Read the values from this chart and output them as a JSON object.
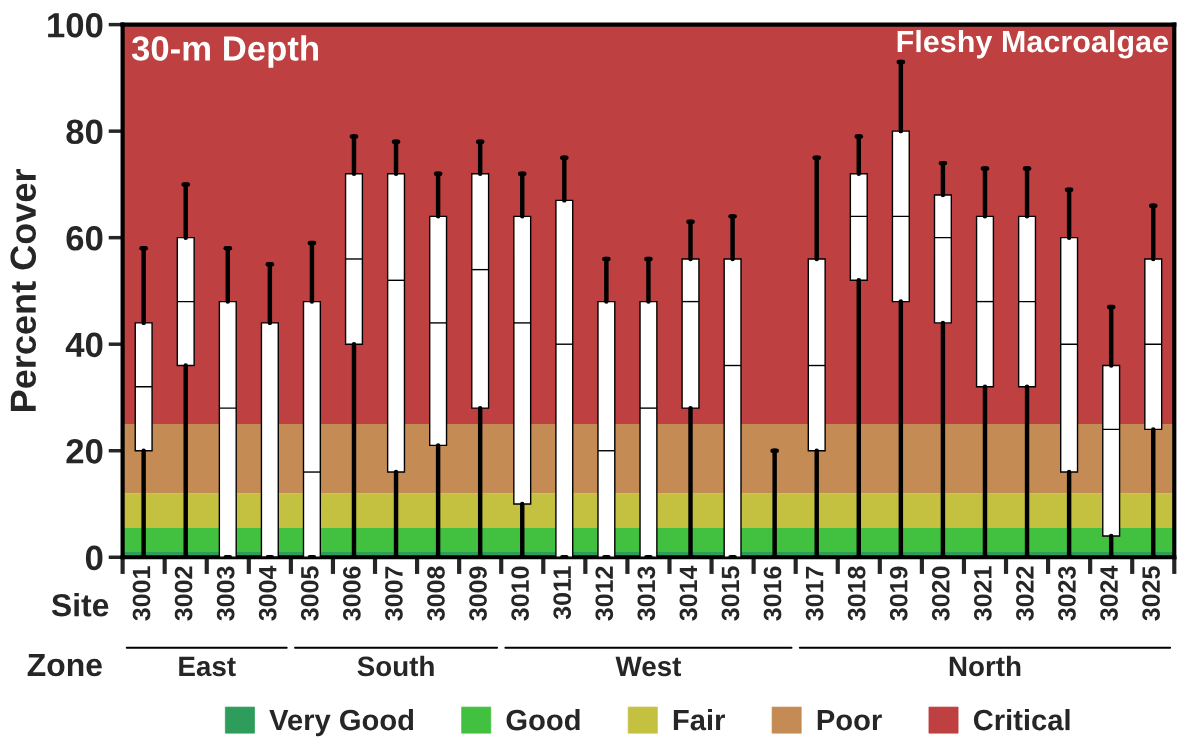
{
  "chart_data": {
    "type": "box",
    "ylabel": "Percent Cover",
    "categories": [
      "3001",
      "3002",
      "3003",
      "3004",
      "3005",
      "3006",
      "3007",
      "3008",
      "3009",
      "3010",
      "3011",
      "3012",
      "3013",
      "3014",
      "3015",
      "3016",
      "3017",
      "3018",
      "3019",
      "3020",
      "3021",
      "3022",
      "3023",
      "3024",
      "3025"
    ],
    "boxes": [
      {
        "low": 0,
        "q1": 20,
        "median": 32,
        "q3": 44,
        "high": 58
      },
      {
        "low": 0,
        "q1": 36,
        "median": 48,
        "q3": 60,
        "high": 70
      },
      {
        "low": 0,
        "q1": 0,
        "median": 28,
        "q3": 48,
        "high": 58
      },
      {
        "low": 0,
        "q1": 0,
        "median": 0,
        "q3": 44,
        "high": 55
      },
      {
        "low": 0,
        "q1": 0,
        "median": 16,
        "q3": 48,
        "high": 59
      },
      {
        "low": 0,
        "q1": 40,
        "median": 56,
        "q3": 72,
        "high": 79
      },
      {
        "low": 0,
        "q1": 16,
        "median": 52,
        "q3": 72,
        "high": 78
      },
      {
        "low": 0,
        "q1": 21,
        "median": 44,
        "q3": 64,
        "high": 72
      },
      {
        "low": 0,
        "q1": 28,
        "median": 54,
        "q3": 72,
        "high": 78
      },
      {
        "low": 0,
        "q1": 10,
        "median": 44,
        "q3": 64,
        "high": 72
      },
      {
        "low": 0,
        "q1": 0,
        "median": 40,
        "q3": 67,
        "high": 75
      },
      {
        "low": 0,
        "q1": 0,
        "median": 20,
        "q3": 48,
        "high": 56
      },
      {
        "low": 0,
        "q1": 0,
        "median": 28,
        "q3": 48,
        "high": 56
      },
      {
        "low": 0,
        "q1": 28,
        "median": 48,
        "q3": 56,
        "high": 63
      },
      {
        "low": 0,
        "q1": 0,
        "median": 36,
        "q3": 56,
        "high": 64
      },
      {
        "low": 0,
        "q1": 0,
        "median": 0,
        "q3": 0,
        "high": 20
      },
      {
        "low": 0,
        "q1": 20,
        "median": 36,
        "q3": 56,
        "high": 75
      },
      {
        "low": 0,
        "q1": 52,
        "median": 64,
        "q3": 72,
        "high": 79
      },
      {
        "low": 0,
        "q1": 48,
        "median": 64,
        "q3": 80,
        "high": 93
      },
      {
        "low": 0,
        "q1": 44,
        "median": 60,
        "q3": 68,
        "high": 74
      },
      {
        "low": 0,
        "q1": 32,
        "median": 48,
        "q3": 64,
        "high": 73
      },
      {
        "low": 0,
        "q1": 32,
        "median": 48,
        "q3": 64,
        "high": 73
      },
      {
        "low": 0,
        "q1": 16,
        "median": 40,
        "q3": 60,
        "high": 69
      },
      {
        "low": 0,
        "q1": 4,
        "median": 24,
        "q3": 36,
        "high": 47
      },
      {
        "low": 0,
        "q1": 24,
        "median": 40,
        "q3": 56,
        "high": 66
      }
    ],
    "ylim": [
      0,
      100
    ],
    "yticks": [
      0,
      20,
      40,
      60,
      80,
      100
    ],
    "bands": [
      {
        "axis": "y",
        "from": 0,
        "to": 1,
        "label": "Very Good",
        "color": "#2e9c5a"
      },
      {
        "axis": "y",
        "from": 1,
        "to": 5.5,
        "label": "Good",
        "color": "#42c040"
      },
      {
        "axis": "y",
        "from": 5.5,
        "to": 12,
        "label": "Fair",
        "color": "#c4c040"
      },
      {
        "axis": "y",
        "from": 12,
        "to": 25,
        "label": "Poor",
        "color": "#c48c54"
      },
      {
        "axis": "y",
        "from": 25,
        "to": 100,
        "label": "Critical",
        "color": "#be4040"
      }
    ],
    "annotations": [
      "30-m Depth",
      "Fleshy Macroalgae",
      "Site",
      "Zone",
      "East",
      "South",
      "West",
      "North"
    ],
    "legend": "bottom",
    "grid": false
  }
}
